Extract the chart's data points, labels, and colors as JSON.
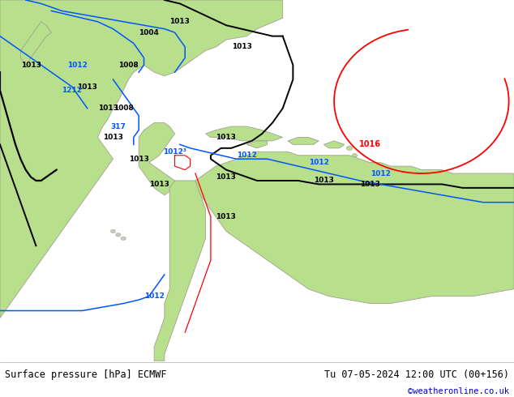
{
  "title_left": "Surface pressure [hPa] ECMWF",
  "title_right": "Tu 07-05-2024 12:00 UTC (00+156)",
  "copyright": "©weatheronline.co.uk",
  "water_color": "#d4d4d8",
  "land_color": "#b8e08c",
  "land_edge_color": "#a0a090",
  "footer_bg": "#e0e0e0",
  "footer_text_color": "#000000",
  "copyright_color": "#0000cc",
  "contour_black": "#000000",
  "contour_blue": "#0055ff",
  "contour_red": "#ff0000",
  "fig_width": 6.34,
  "fig_height": 4.9,
  "dpi": 100
}
